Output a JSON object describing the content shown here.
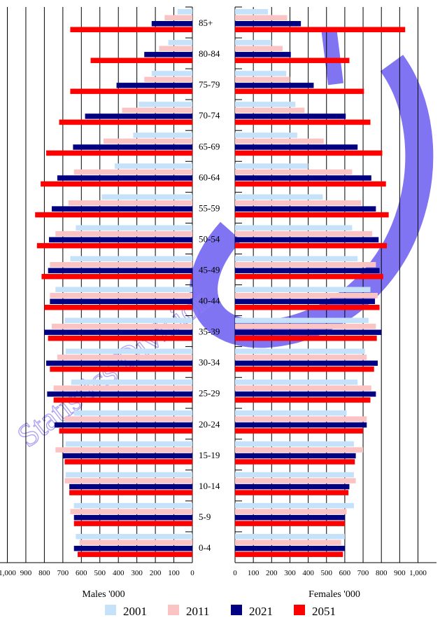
{
  "chart_data": {
    "type": "bar",
    "orientation": "horizontal-population-pyramid",
    "categories": [
      "0-4",
      "5-9",
      "10-14",
      "15-19",
      "20-24",
      "25-29",
      "30-34",
      "35-39",
      "40-44",
      "45-49",
      "50-54",
      "55-59",
      "60-64",
      "65-69",
      "70-74",
      "75-79",
      "80-84",
      "85+"
    ],
    "left": {
      "xlabel": "Males '000",
      "xlim": [
        0,
        1000
      ],
      "ticks": [
        "1,000",
        "900",
        "800",
        "700",
        "600",
        "500",
        "400",
        "300",
        "200",
        "100",
        "0"
      ],
      "series": [
        {
          "name": "2001",
          "values": [
            630,
            640,
            685,
            685,
            640,
            655,
            685,
            690,
            740,
            660,
            630,
            490,
            420,
            320,
            290,
            220,
            130,
            80
          ]
        },
        {
          "name": "2011",
          "values": [
            610,
            660,
            690,
            740,
            690,
            750,
            730,
            760,
            770,
            770,
            740,
            670,
            640,
            480,
            380,
            260,
            180,
            150
          ]
        },
        {
          "name": "2021",
          "values": [
            640,
            640,
            665,
            700,
            745,
            785,
            790,
            800,
            770,
            780,
            775,
            760,
            730,
            645,
            580,
            410,
            260,
            220
          ]
        },
        {
          "name": "2051",
          "values": [
            620,
            640,
            665,
            690,
            720,
            750,
            770,
            780,
            800,
            815,
            840,
            850,
            820,
            790,
            720,
            660,
            550,
            660
          ]
        }
      ]
    },
    "right": {
      "xlabel": "Females '000",
      "xlim": [
        0,
        1000
      ],
      "ticks": [
        "0",
        "100",
        "200",
        "300",
        "400",
        "500",
        "600",
        "700",
        "800",
        "900",
        "1,000"
      ],
      "series": [
        {
          "name": "2001",
          "values": [
            600,
            650,
            650,
            650,
            610,
            670,
            710,
            730,
            740,
            670,
            640,
            480,
            400,
            340,
            330,
            280,
            200,
            180
          ]
        },
        {
          "name": "2011",
          "values": [
            580,
            610,
            660,
            700,
            720,
            745,
            720,
            770,
            780,
            770,
            750,
            690,
            640,
            485,
            380,
            300,
            260,
            285
          ]
        },
        {
          "name": "2021",
          "values": [
            600,
            600,
            625,
            660,
            720,
            770,
            780,
            800,
            765,
            790,
            785,
            770,
            745,
            670,
            605,
            430,
            305,
            360
          ]
        },
        {
          "name": "2051",
          "values": [
            590,
            600,
            620,
            655,
            700,
            740,
            760,
            775,
            790,
            810,
            830,
            840,
            825,
            805,
            740,
            705,
            625,
            930
          ]
        }
      ]
    },
    "colors": {
      "2001": "#c6e2fb",
      "2011": "#fbc4c4",
      "2021": "#000080",
      "2051": "#ff0000",
      "grid": "#000000"
    },
    "grid": true,
    "legend": {
      "position": "bottom",
      "items": [
        "2001",
        "2011",
        "2021",
        "2051"
      ]
    },
    "watermark": {
      "text": "Statistics Division",
      "color": "#9b8cf0"
    }
  }
}
